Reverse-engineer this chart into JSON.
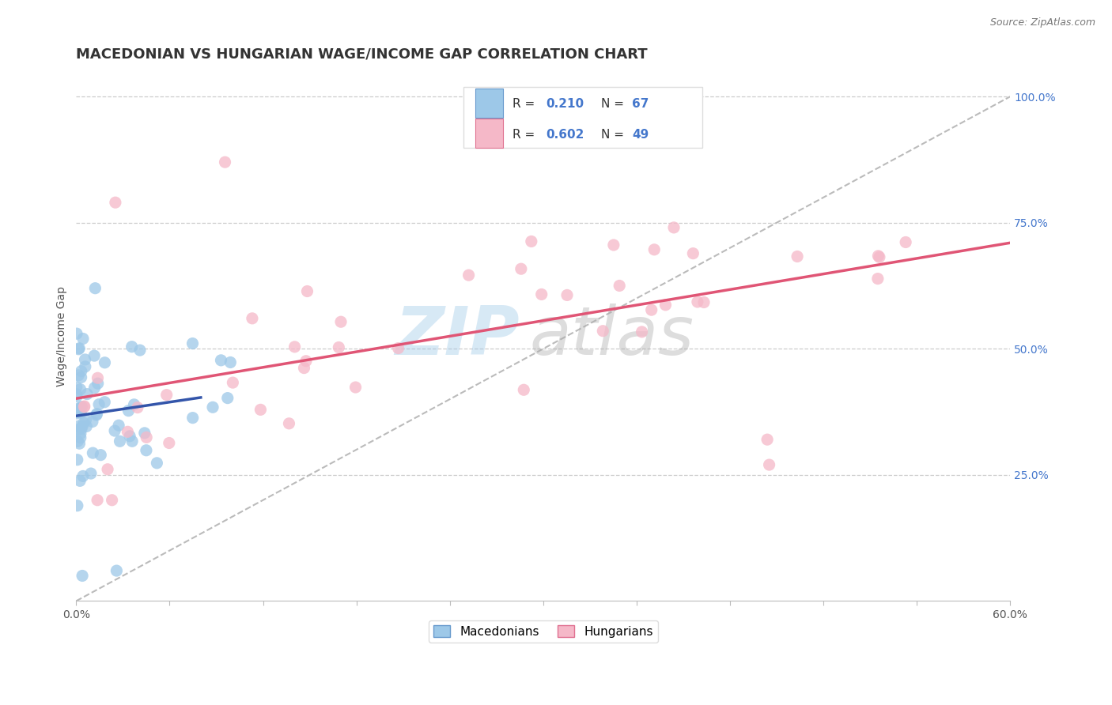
{
  "title": "MACEDONIAN VS HUNGARIAN WAGE/INCOME GAP CORRELATION CHART",
  "source": "Source: ZipAtlas.com",
  "ylabel": "Wage/Income Gap",
  "xlim": [
    0.0,
    0.6
  ],
  "ylim": [
    0.0,
    1.05
  ],
  "yticks": [
    0.25,
    0.5,
    0.75,
    1.0
  ],
  "ytick_labels": [
    "25.0%",
    "50.0%",
    "75.0%",
    "100.0%"
  ],
  "R_macedonian": 0.21,
  "N_macedonian": 67,
  "R_hungarian": 0.602,
  "N_hungarian": 49,
  "blue_scatter_color": "#9DC8E8",
  "blue_edge_color": "#6699CC",
  "blue_line_color": "#3355AA",
  "pink_scatter_color": "#F5B8C8",
  "pink_edge_color": "#E07090",
  "pink_line_color": "#E05575",
  "ref_line_color": "#BBBBBB",
  "background_color": "#FFFFFF",
  "grid_color": "#CCCCCC",
  "right_tick_color": "#4477CC",
  "legend_labels": [
    "Macedonians",
    "Hungarians"
  ],
  "title_fontsize": 13,
  "tick_fontsize": 10,
  "seed": 17
}
